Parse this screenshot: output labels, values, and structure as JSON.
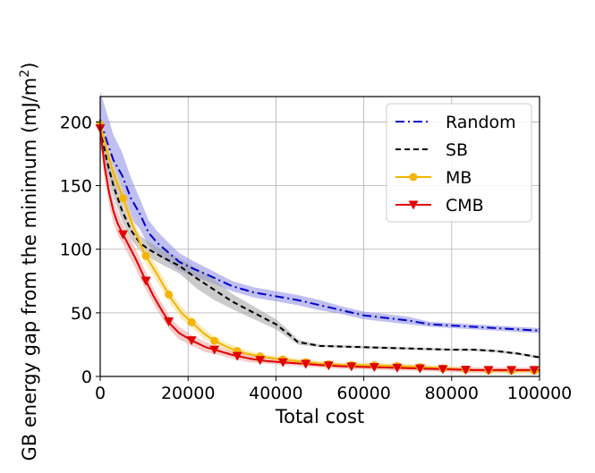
{
  "chart_data": {
    "type": "line",
    "xlabel": "Total cost",
    "ylabel": "GB energy gap from the minimum (mJ/m",
    "ylabel_sup": "2",
    "ylabel_close": ")",
    "xlim": [
      0,
      100000
    ],
    "ylim": [
      0,
      220
    ],
    "xticks": [
      0,
      20000,
      40000,
      60000,
      80000,
      100000
    ],
    "yticks": [
      0,
      50,
      100,
      150,
      200
    ],
    "grid": true,
    "legend_position": "top-right",
    "series": [
      {
        "name": "Random",
        "color": "#0000cc",
        "band_color": "#8a8ae6",
        "line_style": "dashdot",
        "marker": "none",
        "x": [
          0,
          1500,
          3000,
          5000,
          7000,
          9000,
          11000,
          13000,
          15000,
          18000,
          21000,
          25000,
          30000,
          35000,
          40000,
          45000,
          50000,
          55000,
          60000,
          65000,
          70000,
          75000,
          80000,
          85000,
          90000,
          95000,
          100000
        ],
        "y": [
          202,
          185,
          170,
          158,
          140,
          128,
          113,
          105,
          99,
          90,
          85,
          79,
          71,
          66,
          63,
          60,
          56,
          52,
          48,
          46,
          44,
          41,
          40,
          39,
          38,
          37,
          36
        ],
        "band": [
          22,
          22,
          20,
          18,
          16,
          12,
          10,
          9,
          8,
          7,
          6,
          5,
          4,
          4,
          4,
          4,
          4,
          3,
          3,
          3,
          3,
          2,
          2,
          2,
          2,
          2,
          2
        ]
      },
      {
        "name": "SB",
        "color": "#000000",
        "band_color": "#a0a0a0",
        "line_style": "dashed",
        "marker": "none",
        "x": [
          0,
          1500,
          3000,
          5000,
          7000,
          9000,
          11000,
          14000,
          18000,
          22000,
          26000,
          30000,
          35000,
          40000,
          43000,
          45000,
          50000,
          55000,
          60000,
          65000,
          70000,
          75000,
          80000,
          85000,
          90000,
          95000,
          100000
        ],
        "y": [
          195,
          170,
          150,
          130,
          115,
          105,
          100,
          94,
          87,
          77,
          68,
          59,
          50,
          41,
          33,
          27,
          24,
          23.5,
          23,
          22.5,
          22,
          21.5,
          21,
          21,
          20,
          18,
          15
        ],
        "band": [
          10,
          10,
          9,
          8,
          7,
          6,
          6,
          6,
          6,
          8,
          8,
          6,
          5,
          4,
          3,
          2,
          1,
          1,
          1,
          1,
          1,
          1,
          1,
          1,
          1,
          1,
          1
        ]
      },
      {
        "name": "MB",
        "color": "#f5b400",
        "band_color": "#f5dc8a",
        "line_style": "solid",
        "marker": "circle",
        "x": [
          0,
          1500,
          3000,
          5000,
          7500,
          10000,
          13000,
          16000,
          18500,
          21000,
          23500,
          26000,
          29000,
          32000,
          36000,
          40000,
          45000,
          50000,
          55000,
          60000,
          65000,
          70000,
          75000,
          80000,
          85000,
          90000,
          95000,
          100000
        ],
        "y": [
          198,
          178,
          160,
          142,
          118,
          97,
          80,
          62,
          50,
          42,
          34,
          28,
          23,
          19,
          16,
          14,
          12,
          10,
          9,
          9,
          8.5,
          8,
          7,
          6,
          5,
          4.5,
          4.5,
          4.5
        ],
        "band": [
          8,
          8,
          7,
          7,
          6,
          6,
          6,
          5,
          5,
          4,
          4,
          3,
          3,
          3,
          2,
          2,
          2,
          2,
          2,
          2,
          2,
          2,
          2,
          2,
          2,
          2,
          2,
          2
        ],
        "marker_x": [
          0,
          5200,
          10400,
          15600,
          20800,
          26000,
          31200,
          36400,
          41600,
          46800,
          52000,
          57200,
          62400,
          67600,
          72800,
          78000,
          83200,
          88400,
          93600,
          98800
        ]
      },
      {
        "name": "CMB",
        "color": "#e00000",
        "band_color": "#f2a0a0",
        "line_style": "solid",
        "marker": "triangle-down",
        "x": [
          0,
          1000,
          2000,
          3000,
          4000,
          5000,
          6500,
          8000,
          10000,
          12000,
          14000,
          16000,
          18000,
          21000,
          24000,
          27000,
          30000,
          34000,
          38000,
          42000,
          46000,
          50000,
          55000,
          60000,
          65000,
          70000,
          75000,
          80000,
          85000,
          90000,
          95000,
          100000
        ],
        "y": [
          195,
          165,
          145,
          130,
          120,
          113,
          103,
          93,
          78,
          64,
          52,
          41,
          34,
          28,
          23,
          20,
          17,
          14,
          12,
          11,
          10,
          9,
          8,
          7.5,
          7,
          6.5,
          6,
          5.5,
          5,
          5,
          5,
          5
        ],
        "band": [
          10,
          10,
          10,
          9,
          9,
          8,
          8,
          8,
          7,
          6,
          6,
          5,
          5,
          4,
          4,
          3,
          3,
          3,
          2,
          2,
          2,
          2,
          2,
          2,
          2,
          2,
          2,
          2,
          2,
          2,
          2,
          2
        ],
        "marker_x": [
          0,
          5200,
          10400,
          15600,
          20800,
          26000,
          31200,
          36400,
          41600,
          46800,
          52000,
          57200,
          62400,
          67600,
          72800,
          78000,
          83200,
          88400,
          93600,
          98800
        ]
      }
    ]
  }
}
